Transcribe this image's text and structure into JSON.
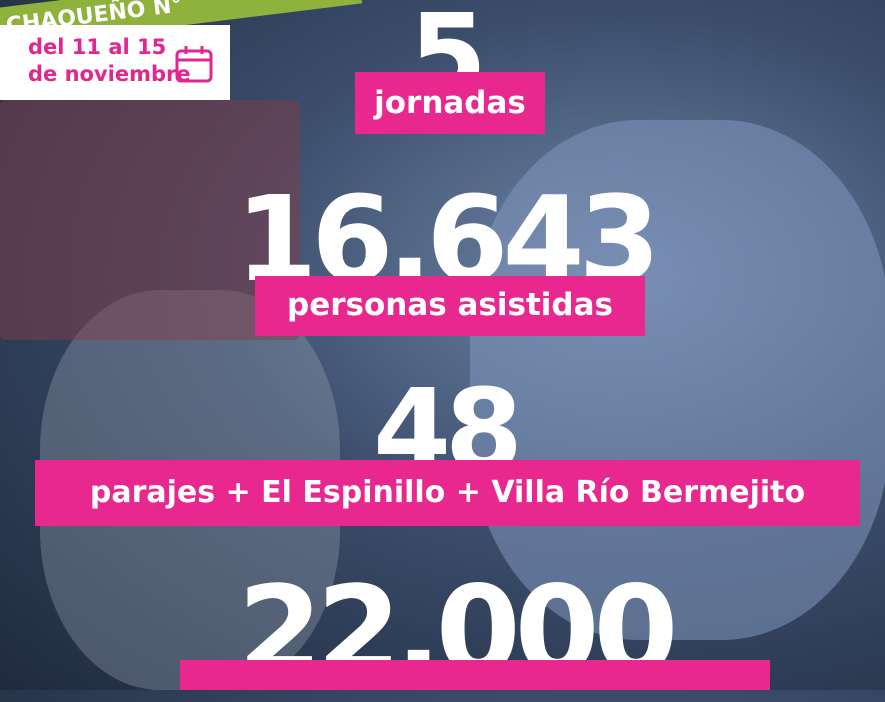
{
  "header": {
    "banner": "CHAQUEÑO N°",
    "date_lines": [
      "del 11 al 15",
      "de noviembre"
    ]
  },
  "stats": [
    {
      "number": "5",
      "label": "jornadas"
    },
    {
      "number": "16.643",
      "label": "personas asistidas"
    },
    {
      "number": "48",
      "label": "parajes + El Espinillo + Villa Río Bermejito"
    },
    {
      "number": "22.000"
    }
  ]
}
